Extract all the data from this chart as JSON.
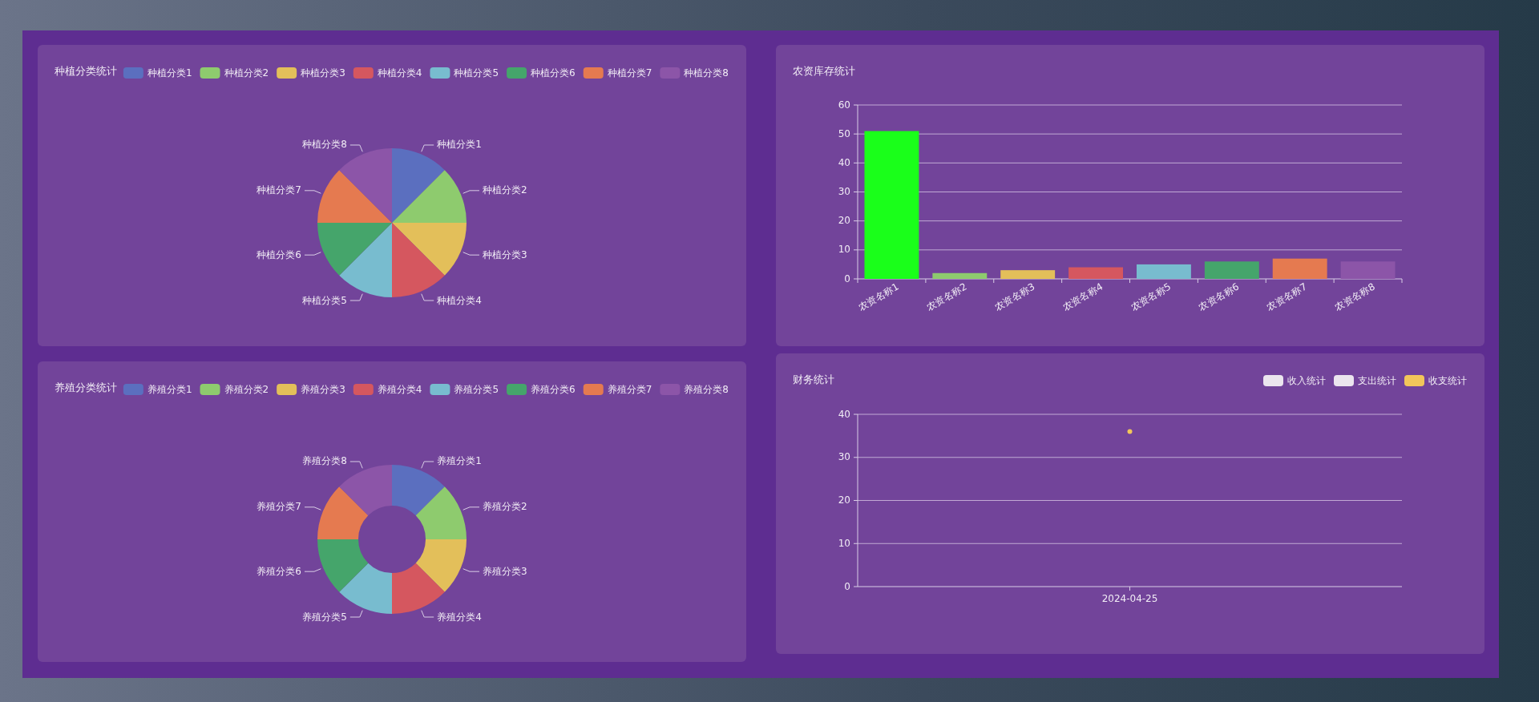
{
  "chart_data": [
    {
      "type": "pie",
      "title": "种植分类统计",
      "legend": "top",
      "categories": [
        "种植分类1",
        "种植分类2",
        "种植分类3",
        "种植分类4",
        "种植分类5",
        "种植分类6",
        "种植分类7",
        "种植分类8"
      ],
      "values": [
        12.5,
        12.5,
        12.5,
        12.5,
        12.5,
        12.5,
        12.5,
        12.5
      ],
      "colors": [
        "#5b6fbf",
        "#8ecb6e",
        "#e3bf5a",
        "#d5575f",
        "#78bccf",
        "#45a56b",
        "#e57a50",
        "#8c55a8"
      ]
    },
    {
      "type": "bar",
      "title": "农资库存统计",
      "categories": [
        "农资名称1",
        "农资名称2",
        "农资名称3",
        "农资名称4",
        "农资名称5",
        "农资名称6",
        "农资名称7",
        "农资名称8"
      ],
      "values": [
        51,
        2,
        3,
        4,
        5,
        6,
        7,
        6
      ],
      "colors": [
        "#1aff1a",
        "#8ecb6e",
        "#e3bf5a",
        "#d5575f",
        "#78bccf",
        "#45a56b",
        "#e57a50",
        "#8c55a8"
      ],
      "ylim": [
        0,
        60
      ],
      "yticks": [
        0,
        10,
        20,
        30,
        40,
        50,
        60
      ],
      "grid": "y"
    },
    {
      "type": "donut",
      "title": "养殖分类统计",
      "legend": "top",
      "categories": [
        "养殖分类1",
        "养殖分类2",
        "养殖分类3",
        "养殖分类4",
        "养殖分类5",
        "养殖分类6",
        "养殖分类7",
        "养殖分类8"
      ],
      "values": [
        12.5,
        12.5,
        12.5,
        12.5,
        12.5,
        12.5,
        12.5,
        12.5
      ],
      "colors": [
        "#5b6fbf",
        "#8ecb6e",
        "#e3bf5a",
        "#d5575f",
        "#78bccf",
        "#45a56b",
        "#e57a50",
        "#8c55a8"
      ]
    },
    {
      "type": "line",
      "title": "财务统计",
      "legend": "top right",
      "marker": "circle",
      "categories": [
        "2024-04-25"
      ],
      "ylim": [
        0,
        40
      ],
      "yticks": [
        0,
        10,
        20,
        30,
        40
      ],
      "grid": "y",
      "series": [
        {
          "name": "收入统计",
          "values": [
            null
          ]
        },
        {
          "name": "支出统计",
          "values": [
            null
          ]
        },
        {
          "name": "收支统计",
          "color": "#f2c65a",
          "values": [
            36
          ]
        }
      ]
    }
  ]
}
